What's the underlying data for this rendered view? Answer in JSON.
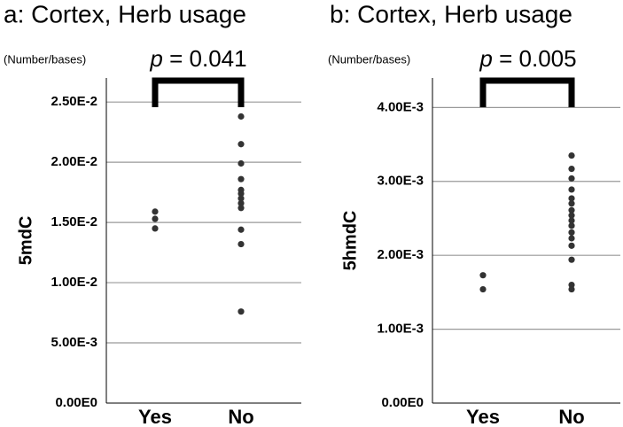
{
  "chart_data": [
    {
      "type": "strip",
      "title": "a: Cortex, Herb usage",
      "unit": "(Number/bases)",
      "y_label": "5mdC",
      "annotation": {
        "symbol": "p",
        "text": "= 0.041"
      },
      "categories": [
        "Yes",
        "No"
      ],
      "color": "#333333",
      "values": [
        [
          0.0159,
          0.0153,
          0.0145
        ],
        [
          0.0238,
          0.0215,
          0.0199,
          0.0186,
          0.0177,
          0.0174,
          0.017,
          0.0166,
          0.0162,
          0.0144,
          0.0132,
          0.0076
        ]
      ],
      "ylim": [
        0,
        0.027
      ],
      "yticks": [
        {
          "value": 0,
          "label": "0.00E0"
        },
        {
          "value": 0.005,
          "label": "5.00E-3"
        },
        {
          "value": 0.01,
          "label": "1.00E-2"
        },
        {
          "value": 0.015,
          "label": "1.50E-2"
        },
        {
          "value": 0.02,
          "label": "2.00E-2"
        },
        {
          "value": 0.025,
          "label": "2.50E-2"
        }
      ],
      "grid": true
    },
    {
      "type": "strip",
      "title": "b: Cortex, Herb usage",
      "unit": "(Number/bases)",
      "y_label": "5hmdC",
      "annotation": {
        "symbol": "p",
        "text": "= 0.005"
      },
      "categories": [
        "Yes",
        "No"
      ],
      "color": "#333333",
      "values": [
        [
          0.00173,
          0.00154
        ],
        [
          0.00335,
          0.00317,
          0.00304,
          0.00289,
          0.00277,
          0.0027,
          0.00261,
          0.00254,
          0.00247,
          0.0024,
          0.00231,
          0.00223,
          0.00213,
          0.00194,
          0.0016,
          0.00154
        ]
      ],
      "ylim": [
        0,
        0.0044
      ],
      "yticks": [
        {
          "value": 0,
          "label": "0.00E0"
        },
        {
          "value": 0.001,
          "label": "1.00E-3"
        },
        {
          "value": 0.002,
          "label": "2.00E-3"
        },
        {
          "value": 0.003,
          "label": "3.00E-3"
        },
        {
          "value": 0.004,
          "label": "4.00E-3"
        }
      ],
      "grid": true
    }
  ]
}
